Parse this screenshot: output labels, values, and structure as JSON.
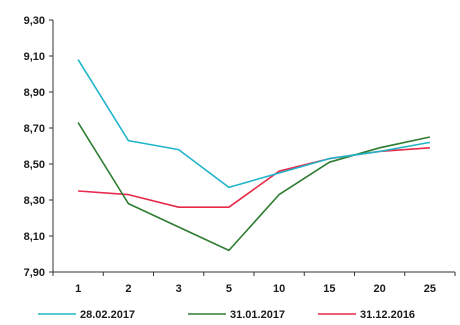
{
  "chart_data": {
    "type": "line",
    "categories": [
      "1",
      "2",
      "3",
      "5",
      "10",
      "15",
      "20",
      "25"
    ],
    "ylim": [
      7.9,
      9.3
    ],
    "yticks": [
      "9,30",
      "9,10",
      "8,90",
      "8,70",
      "8,50",
      "8,30",
      "8,10",
      "7,90"
    ],
    "ytick_values": [
      9.3,
      9.1,
      8.9,
      8.7,
      8.5,
      8.3,
      8.1,
      7.9
    ],
    "grid": false,
    "legend_position": "bottom",
    "series": [
      {
        "name": "28.02.2017",
        "color": "#1fb5c9",
        "values": [
          9.08,
          8.63,
          8.58,
          8.37,
          8.45,
          8.53,
          8.57,
          8.62
        ]
      },
      {
        "name": "31.01.2017",
        "color": "#2e7d32",
        "values": [
          8.73,
          8.28,
          8.15,
          8.02,
          8.33,
          8.51,
          8.59,
          8.65
        ]
      },
      {
        "name": "31.12.2016",
        "color": "#e8294a",
        "values": [
          8.35,
          8.33,
          8.26,
          8.26,
          8.46,
          8.53,
          8.57,
          8.59
        ]
      }
    ]
  }
}
